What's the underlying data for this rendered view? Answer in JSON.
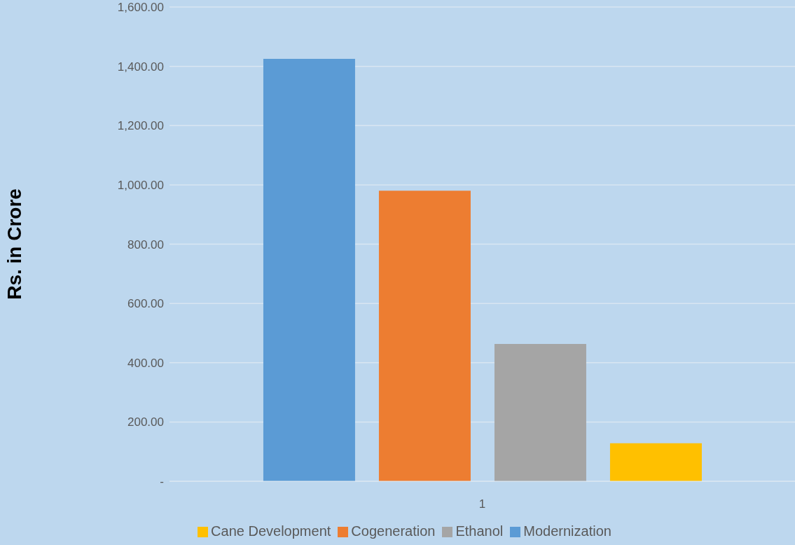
{
  "chart_data": {
    "type": "bar",
    "ylabel": "Rs. in Crore",
    "categories": [
      "1"
    ],
    "series": [
      {
        "name": "Modernization",
        "color": "#5b9bd5",
        "values": [
          1425
        ]
      },
      {
        "name": "Cogeneration",
        "color": "#ed7d31",
        "values": [
          980
        ]
      },
      {
        "name": "Ethanol",
        "color": "#a5a5a5",
        "values": [
          463
        ]
      },
      {
        "name": "Cane Development",
        "color": "#ffc000",
        "values": [
          128
        ]
      }
    ],
    "ylim": [
      0,
      1600
    ],
    "yticks": [
      {
        "value": 0,
        "label": "-"
      },
      {
        "value": 200,
        "label": "200.00"
      },
      {
        "value": 400,
        "label": "400.00"
      },
      {
        "value": 600,
        "label": "600.00"
      },
      {
        "value": 800,
        "label": "800.00"
      },
      {
        "value": 1000,
        "label": "1,000.00"
      },
      {
        "value": 1200,
        "label": "1,200.00"
      },
      {
        "value": 1400,
        "label": "1,400.00"
      },
      {
        "value": 1600,
        "label": "1,600.00"
      }
    ],
    "grid": "y",
    "legend": "bottom"
  }
}
